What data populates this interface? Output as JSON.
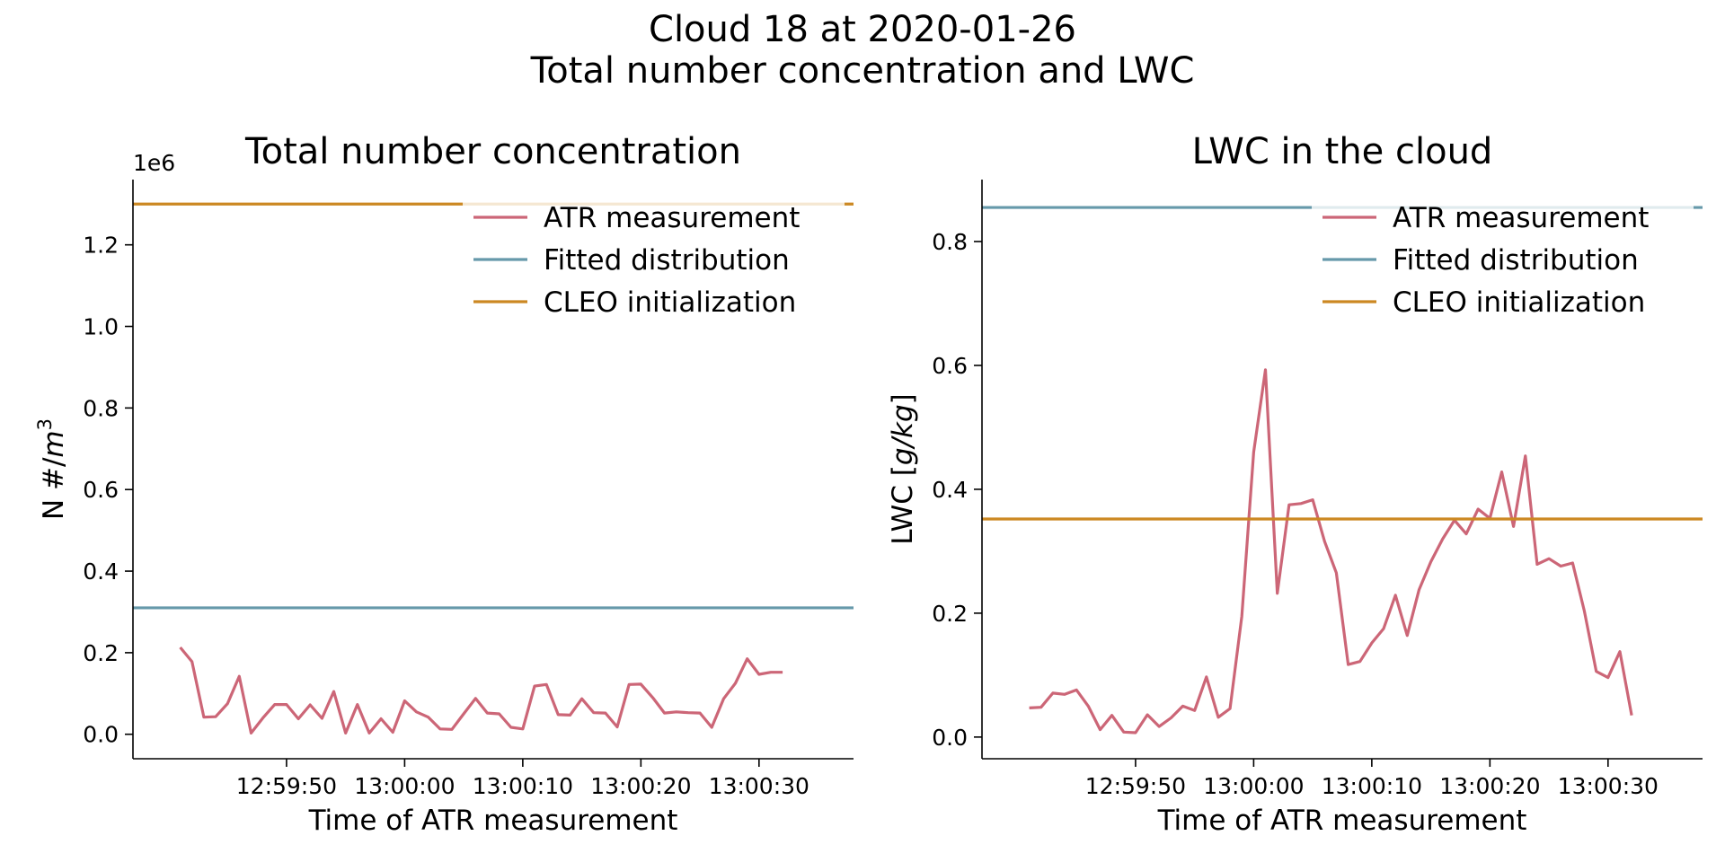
{
  "figure": {
    "title_line1": "Cloud 18 at 2020-01-26",
    "title_line2": "Total number concentration and LWC"
  },
  "colors": {
    "atr": "#cc6677",
    "fitted": "#6699aa",
    "cleo": "#cc8822"
  },
  "chart_data": [
    {
      "type": "line",
      "title": "Total number concentration",
      "xlabel": "Time of ATR measurement",
      "ylabel_prefix": "N #/",
      "ylabel_unit": "m",
      "ylabel_exp": "3",
      "y_offset_text": "1e6",
      "xlim": [
        "12:59:37",
        "13:00:38"
      ],
      "ylim": [
        -0.06,
        1.36
      ],
      "xticks": [
        "12:59:50",
        "13:00:00",
        "13:00:10",
        "13:00:20",
        "13:00:30"
      ],
      "yticks": [
        "0.0",
        "0.2",
        "0.4",
        "0.6",
        "0.8",
        "1.0",
        "1.2"
      ],
      "ytick_values": [
        0.0,
        0.2,
        0.4,
        0.6,
        0.8,
        1.0,
        1.2
      ],
      "legend_position": "upper-right",
      "series": [
        {
          "name": "ATR measurement",
          "x_start": "12:59:41",
          "x_step_seconds": 1,
          "values": [
            0.213,
            0.178,
            0.042,
            0.043,
            0.075,
            0.142,
            0.003,
            0.04,
            0.073,
            0.073,
            0.038,
            0.072,
            0.039,
            0.105,
            0.003,
            0.073,
            0.003,
            0.038,
            0.005,
            0.082,
            0.055,
            0.042,
            0.013,
            0.012,
            0.05,
            0.088,
            0.052,
            0.05,
            0.017,
            0.013,
            0.118,
            0.122,
            0.048,
            0.047,
            0.087,
            0.053,
            0.052,
            0.018,
            0.122,
            0.123,
            0.09,
            0.052,
            0.055,
            0.053,
            0.052,
            0.017,
            0.087,
            0.125,
            0.185,
            0.147,
            0.152,
            0.152
          ]
        },
        {
          "name": "Fitted distribution",
          "constant": 0.31
        },
        {
          "name": "CLEO initialization",
          "constant": 1.3
        }
      ]
    },
    {
      "type": "line",
      "title": "LWC in the cloud",
      "xlabel": "Time of ATR measurement",
      "ylabel_prefix": "LWC [",
      "ylabel_unit": "g/kg",
      "ylabel_suffix": "]",
      "xlim": [
        "12:59:37",
        "13:00:38"
      ],
      "ylim": [
        -0.035,
        0.9
      ],
      "xticks": [
        "12:59:50",
        "13:00:00",
        "13:00:10",
        "13:00:20",
        "13:00:30"
      ],
      "yticks": [
        "0.0",
        "0.2",
        "0.4",
        "0.6",
        "0.8"
      ],
      "ytick_values": [
        0.0,
        0.2,
        0.4,
        0.6,
        0.8
      ],
      "legend_position": "upper-right",
      "series": [
        {
          "name": "ATR measurement",
          "x_start": "12:59:41",
          "x_step_seconds": 1,
          "values": [
            0.047,
            0.048,
            0.071,
            0.069,
            0.076,
            0.05,
            0.012,
            0.035,
            0.008,
            0.007,
            0.036,
            0.017,
            0.031,
            0.05,
            0.043,
            0.097,
            0.032,
            0.046,
            0.195,
            0.46,
            0.593,
            0.232,
            0.375,
            0.377,
            0.383,
            0.316,
            0.265,
            0.117,
            0.122,
            0.152,
            0.175,
            0.229,
            0.164,
            0.238,
            0.283,
            0.32,
            0.35,
            0.328,
            0.368,
            0.353,
            0.428,
            0.34,
            0.454,
            0.279,
            0.288,
            0.276,
            0.281,
            0.203,
            0.106,
            0.096,
            0.138,
            0.035
          ]
        },
        {
          "name": "Fitted distribution",
          "constant": 0.855
        },
        {
          "name": "CLEO initialization",
          "constant": 0.352
        }
      ]
    }
  ]
}
